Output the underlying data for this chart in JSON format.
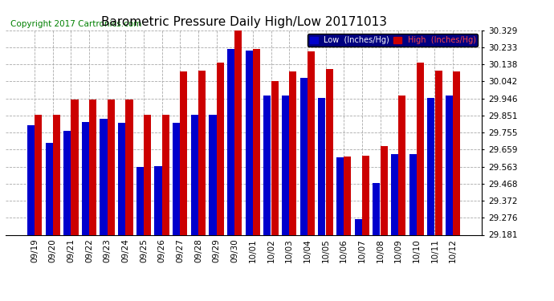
{
  "title": "Barometric Pressure Daily High/Low 20171013",
  "copyright": "Copyright 2017 Cartronics.com",
  "legend_low": "Low  (Inches/Hg)",
  "legend_high": "High  (Inches/Hg)",
  "categories": [
    "09/19",
    "09/20",
    "09/21",
    "09/22",
    "09/23",
    "09/24",
    "09/25",
    "09/26",
    "09/27",
    "09/28",
    "09/29",
    "09/30",
    "10/01",
    "10/02",
    "10/03",
    "10/04",
    "10/05",
    "10/06",
    "10/07",
    "10/08",
    "10/09",
    "10/10",
    "10/11",
    "10/12"
  ],
  "low_values": [
    29.795,
    29.695,
    29.765,
    29.815,
    29.83,
    29.81,
    29.56,
    29.565,
    29.81,
    29.855,
    29.855,
    30.225,
    30.215,
    29.96,
    29.96,
    30.06,
    29.95,
    29.615,
    29.27,
    29.47,
    29.635,
    29.635,
    29.95,
    29.96
  ],
  "high_values": [
    29.855,
    29.855,
    29.94,
    29.94,
    29.94,
    29.94,
    29.855,
    29.855,
    30.095,
    30.1,
    30.145,
    30.325,
    30.225,
    30.042,
    30.095,
    30.21,
    30.11,
    29.62,
    29.625,
    29.68,
    29.96,
    30.145,
    30.1,
    30.095
  ],
  "ymin": 29.181,
  "ymax": 30.329,
  "yticks": [
    29.181,
    29.276,
    29.372,
    29.468,
    29.563,
    29.659,
    29.755,
    29.851,
    29.946,
    30.042,
    30.138,
    30.233,
    30.329
  ],
  "low_color": "#0000cc",
  "high_color": "#cc0000",
  "bg_color": "#ffffff",
  "grid_color": "#aaaaaa",
  "title_fontsize": 11,
  "copyright_fontsize": 7.5,
  "tick_fontsize": 7.5
}
